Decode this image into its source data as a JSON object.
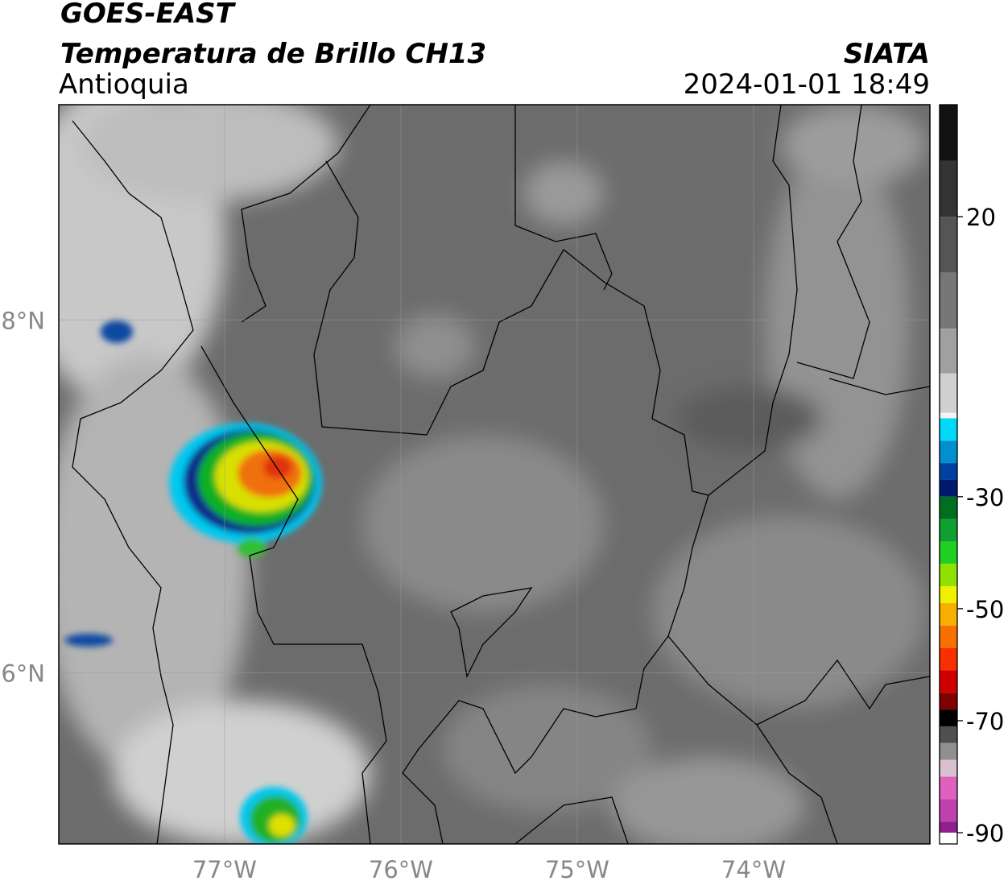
{
  "header": {
    "satellite": "GOES-EAST",
    "product": "Temperatura de Brillo CH13",
    "region": "Antioquia",
    "source": "SIATA",
    "datetime": "2024-01-01 18:49"
  },
  "chart_data": {
    "type": "map",
    "xlim": [
      -77.94,
      -73.0
    ],
    "ylim": [
      5.03,
      9.22
    ],
    "xticks": [
      {
        "value": -77,
        "label": "77°W"
      },
      {
        "value": -76,
        "label": "76°W"
      },
      {
        "value": -75,
        "label": "75°W"
      },
      {
        "value": -74,
        "label": "74°W"
      }
    ],
    "yticks": [
      {
        "value": 8,
        "label": "8°N"
      },
      {
        "value": 6,
        "label": "6°N"
      }
    ],
    "grid": true,
    "colorbar": {
      "lim": [
        -92,
        40
      ],
      "ticks": [
        20,
        -30,
        -50,
        -70,
        -90
      ],
      "colormap": [
        {
          "value": 40,
          "color": "#111111"
        },
        {
          "value": 30,
          "color": "#333333"
        },
        {
          "value": 20,
          "color": "#555555"
        },
        {
          "value": 10,
          "color": "#777777"
        },
        {
          "value": 0,
          "color": "#a0a0a0"
        },
        {
          "value": -8,
          "color": "#d0d0d0"
        },
        {
          "value": -15,
          "color": "#f4f4f4"
        },
        {
          "value": -16,
          "color": "#00d8f8"
        },
        {
          "value": -20,
          "color": "#0090d0"
        },
        {
          "value": -24,
          "color": "#0040a0"
        },
        {
          "value": -27,
          "color": "#001a70"
        },
        {
          "value": -30,
          "color": "#007020"
        },
        {
          "value": -34,
          "color": "#10a030"
        },
        {
          "value": -38,
          "color": "#20d020"
        },
        {
          "value": -42,
          "color": "#90e000"
        },
        {
          "value": -46,
          "color": "#f0f000"
        },
        {
          "value": -49,
          "color": "#f8b000"
        },
        {
          "value": -53,
          "color": "#f87000"
        },
        {
          "value": -57,
          "color": "#f83000"
        },
        {
          "value": -61,
          "color": "#d00000"
        },
        {
          "value": -65,
          "color": "#800000"
        },
        {
          "value": -68,
          "color": "#000000"
        },
        {
          "value": -71,
          "color": "#505050"
        },
        {
          "value": -74,
          "color": "#909090"
        },
        {
          "value": -77,
          "color": "#d8c0d0"
        },
        {
          "value": -80,
          "color": "#e060c0"
        },
        {
          "value": -84,
          "color": "#c040b0"
        },
        {
          "value": -88,
          "color": "#902090"
        },
        {
          "value": -90,
          "color": "#ffffff"
        }
      ]
    }
  }
}
